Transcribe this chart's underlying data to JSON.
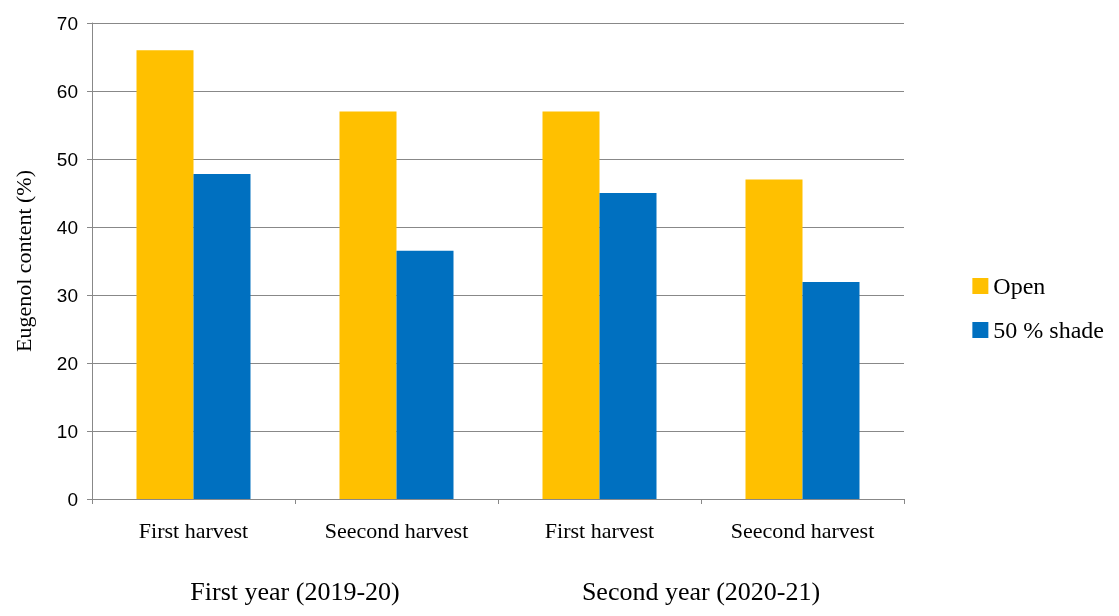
{
  "chart_data": {
    "type": "bar",
    "ylabel": "Eugenol content (%)",
    "categories": [
      "First harvest",
      "Seecond harvest",
      "First harvest",
      "Seecond harvest"
    ],
    "series": [
      {
        "name": "Open",
        "color": "#ffc000",
        "values": [
          66,
          57,
          57,
          47
        ]
      },
      {
        "name": "50 % shade",
        "color": "#0070c0",
        "values": [
          47.8,
          36.5,
          45,
          31.9
        ]
      }
    ],
    "ylim": [
      0,
      70
    ],
    "yticks": [
      0,
      10,
      20,
      30,
      40,
      50,
      60,
      70
    ],
    "grid": "y",
    "legend": "right",
    "annotations": [
      "First year (2019-20)",
      "Second year (2020-21)"
    ]
  }
}
